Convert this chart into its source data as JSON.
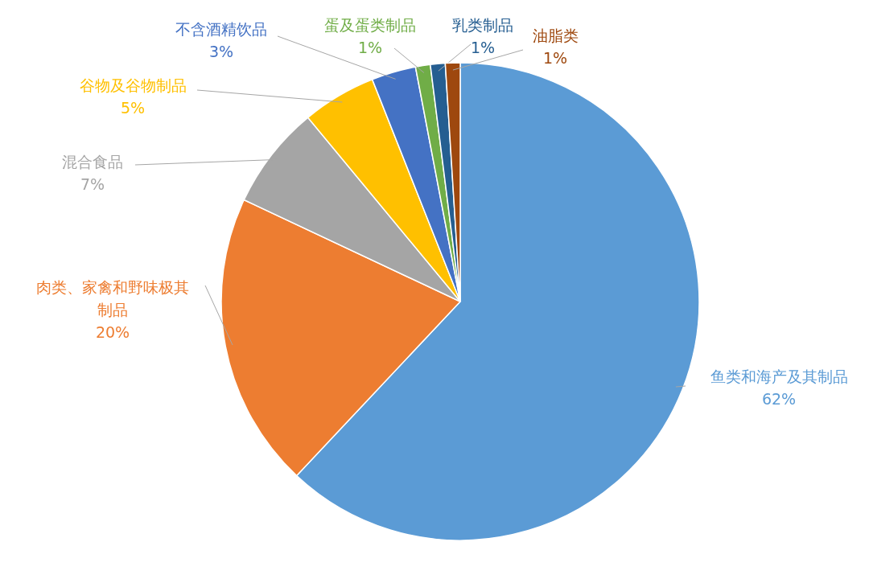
{
  "chart_data": {
    "type": "pie",
    "categories": [
      "鱼类和海产及其制品",
      "肉类、家禽和野味极其制品",
      "混合食品",
      "谷物及谷物制品",
      "不含酒精饮品",
      "蛋及蛋类制品",
      "乳类制品",
      "油脂类"
    ],
    "values": [
      62,
      20,
      7,
      5,
      3,
      1,
      1,
      1
    ],
    "colors": [
      "#5b9bd5",
      "#ed7d31",
      "#a5a5a5",
      "#ffc000",
      "#4472c4",
      "#70ad47",
      "#255e91",
      "#9e480e"
    ],
    "value_labels": [
      "62%",
      "20%",
      "7%",
      "5%",
      "3%",
      "1%",
      "1%",
      "1%"
    ]
  }
}
